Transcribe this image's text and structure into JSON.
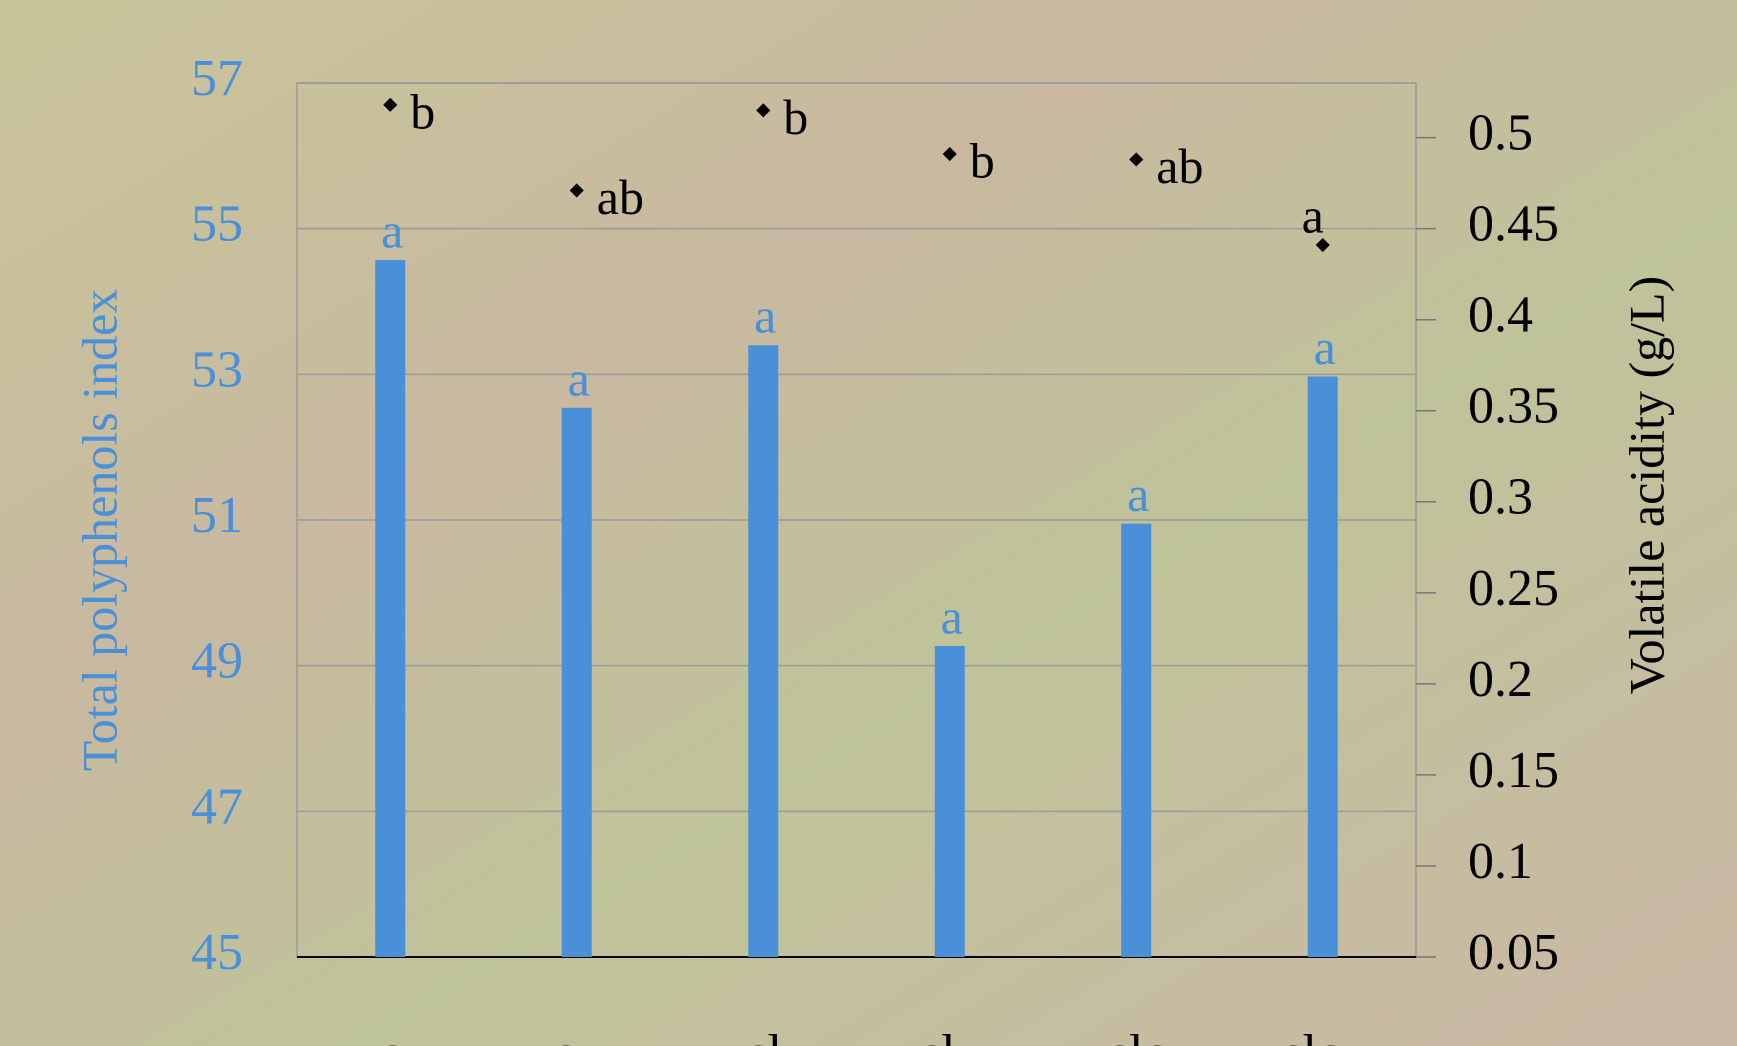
{
  "chart_data": {
    "type": "bar",
    "categories": [
      "c",
      "cu",
      "cl",
      "clu",
      "clc",
      "clcu"
    ],
    "ylabel": "Total polyphenols index",
    "y2label": "Volatile acidity (g/L)",
    "ylim": [
      45,
      57
    ],
    "yticks": [
      45,
      47,
      49,
      51,
      53,
      55,
      57
    ],
    "y2lim": [
      0.05,
      0.53
    ],
    "y2ticks": [
      0.05,
      0.1,
      0.15,
      0.2,
      0.25,
      0.3,
      0.35,
      0.4,
      0.45,
      0.5
    ],
    "grid": true,
    "series": [
      {
        "type": "bar",
        "color": "#4a90d9",
        "values": [
          54.57,
          52.54,
          53.4,
          49.27,
          50.95,
          52.97
        ],
        "significance": [
          "a",
          "a",
          "a",
          "a",
          "a",
          "a"
        ]
      },
      {
        "type": "scatter",
        "axis": "y2",
        "color": "#000000",
        "values": [
          0.518,
          0.471,
          0.515,
          0.491,
          0.488,
          0.441
        ],
        "significance": [
          "b",
          "ab",
          "b",
          "b",
          "ab",
          "a"
        ]
      }
    ]
  }
}
